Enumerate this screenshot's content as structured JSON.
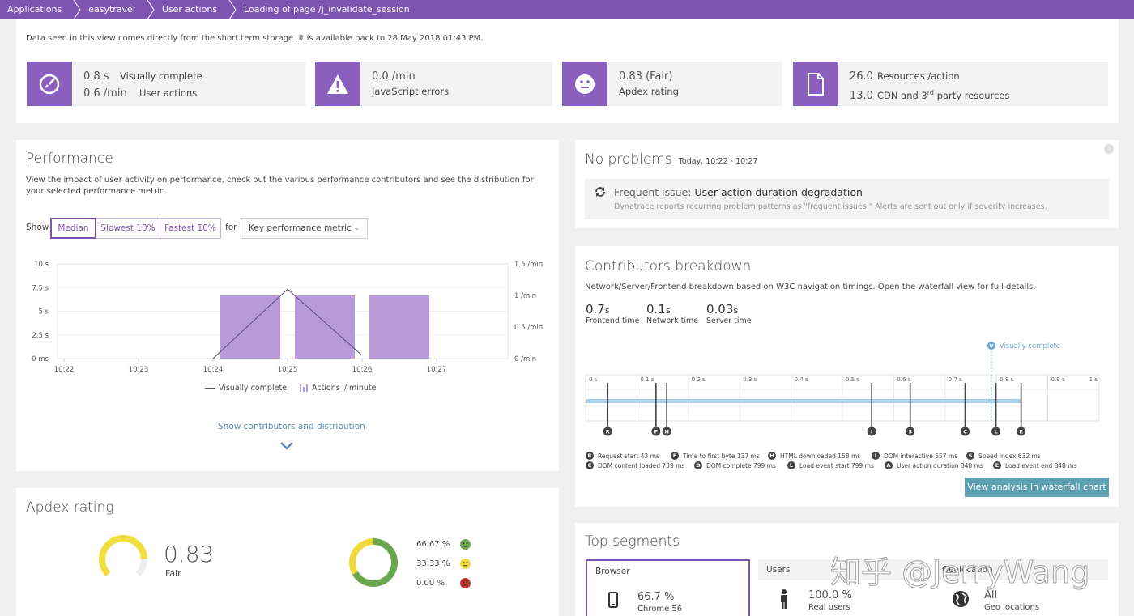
{
  "breadcrumb": [
    "Applications",
    "easytravel",
    "User actions",
    "Loading of page /j_invalidate_session"
  ],
  "storage_note": "Data seen in this view comes directly from the short term storage. It is available back to 28 May 2018 01:43 PM.",
  "kpis": {
    "vc": {
      "val1": "0.8 s",
      "lbl1": "Visually complete",
      "val2": "0.6 /min",
      "lbl2": "User actions",
      "icon": "gauge-icon"
    },
    "js": {
      "val1": "0.0 /min",
      "lbl1": "JavaScript errors",
      "icon": "warning-icon"
    },
    "apdex": {
      "val1": "0.83 (Fair)",
      "lbl1": "Apdex rating",
      "icon": "smiley-icon"
    },
    "res": {
      "val1": "26.0",
      "lbl1": "Resources /action",
      "val2": "13.0",
      "lbl2a": "CDN and 3",
      "lbl2sup": "rd",
      "lbl2b": " party resources",
      "icon": "document-icon"
    }
  },
  "performance": {
    "title": "Performance",
    "desc": "View the impact of user activity on performance, check out the various performance contributors and see the distribution for your selected performance metric.",
    "show_label": "Show",
    "tabs": [
      "Median",
      "Slowest 10%",
      "Fastest 10%"
    ],
    "for_label": "for",
    "metric_select": "Key performance metric",
    "legend_vc": "Visually complete",
    "legend_actions": "Actions",
    "legend_per": "/ minute",
    "show_contrib": "Show contributors and distribution"
  },
  "chart_data": {
    "type": "bar",
    "categories": [
      "10:22",
      "10:23",
      "10:24",
      "10:25",
      "10:26",
      "10:27"
    ],
    "y_left_ticks": [
      "10 s",
      "7.5 s",
      "5 s",
      "2.5 s",
      "0 ms"
    ],
    "y_right_ticks": [
      "1.5 /min",
      "1 /min",
      "0.5 /min",
      "0 /min"
    ],
    "series": [
      {
        "name": "Actions",
        "type": "bar",
        "x": [
          "10:24",
          "10:25",
          "10:26"
        ],
        "values": [
          1,
          1,
          1
        ],
        "color": "#b99ad9"
      },
      {
        "name": "Visually complete",
        "type": "line",
        "x": [
          "10:24",
          "10:25",
          "10:26"
        ],
        "values": [
          0,
          1.1,
          0.05
        ],
        "color": "#5a4a78"
      }
    ],
    "ylim_left": [
      0,
      10
    ],
    "ylim_right": [
      0,
      1.5
    ],
    "grid": true,
    "legend": "bottom"
  },
  "apdex": {
    "title": "Apdex rating",
    "value": "0.83",
    "label": "Fair",
    "breakdown": [
      {
        "pct": "66.67 %",
        "color": "#6aa84f",
        "icon": "happy-face-icon"
      },
      {
        "pct": "33.33 %",
        "color": "#f0d93a",
        "icon": "neutral-face-icon"
      },
      {
        "pct": "0.00 %",
        "color": "#c0392b",
        "icon": "sad-face-icon"
      }
    ],
    "gauge_fraction": 0.83,
    "colors": {
      "gauge": "#f1df3f",
      "satisfied": "#6aa84f",
      "tolerating": "#f0d93a",
      "frustrated": "#c0392b"
    }
  },
  "problems": {
    "title": "No problems",
    "range": "Today, 10:22 - 10:27",
    "issue_prefix": "Frequent issue:",
    "issue_title": "User action duration degradation",
    "issue_desc": "Dynatrace reports recurring problem patterns as \"frequent issues.\" Alerts are sent out only if severity increases."
  },
  "contributors": {
    "title": "Contributors breakdown",
    "desc": "Network/Server/Frontend breakdown based on W3C navigation timings. Open the waterfall view for full details.",
    "items": [
      {
        "val": "0.7",
        "unit": "s",
        "label": "Frontend time"
      },
      {
        "val": "0.1",
        "unit": "s",
        "label": "Network time"
      },
      {
        "val": "0.03",
        "unit": "s",
        "label": "Server time"
      }
    ],
    "vc_marker": "Visually complete",
    "scale": [
      "0 s",
      "0.1 s",
      "0.2 s",
      "0.3 s",
      "0.4 s",
      "0.5 s",
      "0.6 s",
      "0.7 s",
      "0.8 s",
      "0.9 s",
      "1 s"
    ],
    "markers": [
      {
        "letter": "R",
        "label": "Request start 43 ms",
        "ms": 43
      },
      {
        "letter": "F",
        "label": "Time to first byte 137 ms",
        "ms": 137
      },
      {
        "letter": "H",
        "label": "HTML downloaded 158 ms",
        "ms": 158
      },
      {
        "letter": "I",
        "label": "DOM interactive 557 ms",
        "ms": 557
      },
      {
        "letter": "S",
        "label": "Speed index 632 ms",
        "ms": 632
      },
      {
        "letter": "C",
        "label": "DOM content loaded 739 ms",
        "ms": 739
      },
      {
        "letter": "D",
        "label": "DOM complete 799 ms",
        "ms": 799
      },
      {
        "letter": "L",
        "label": "Load event start 799 ms",
        "ms": 799
      },
      {
        "letter": "A",
        "label": "User action duration 848 ms",
        "ms": 848
      },
      {
        "letter": "E",
        "label": "Load event end 848 ms",
        "ms": 848
      }
    ],
    "waterfall_button": "View analysis in waterfall chart"
  },
  "segments": {
    "title": "Top segments",
    "cards": [
      {
        "head": "Browser",
        "val": "66.7 %",
        "sub": "Chrome 56",
        "icon": "mobile-icon"
      },
      {
        "head": "Users",
        "val": "100.0 %",
        "sub": "Real users",
        "icon": "person-icon"
      },
      {
        "head": "Geolocation",
        "val": "All",
        "sub": "Geo locations",
        "icon": "globe-icon"
      }
    ]
  },
  "watermark": "知乎 @JerryWang",
  "colors": {
    "brand": "#7e54b2",
    "accent_icon": "#8b5fbd",
    "bar": "#b99ad9",
    "timeline": "#a6d0ec",
    "button": "#5ea0b3"
  }
}
